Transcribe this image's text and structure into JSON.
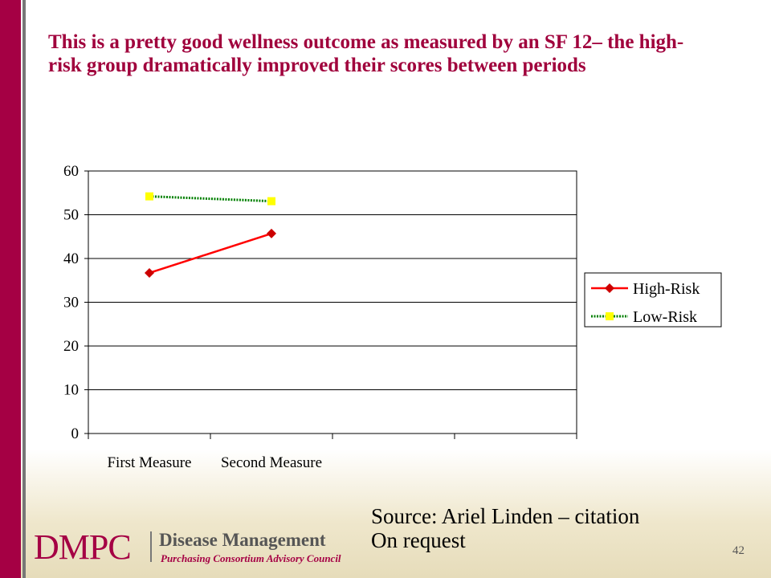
{
  "title": "This is a pretty good wellness outcome as measured by an SF 12– the high-risk group dramatically improved their scores between periods",
  "chart_data": {
    "type": "line",
    "categories": [
      "First Measure",
      "Second Measure",
      null,
      null
    ],
    "series": [
      {
        "name": "High-Risk",
        "color": "#ff0000",
        "marker": "diamond",
        "marker_color": "#cc0000",
        "values": [
          36.7,
          45.7,
          null,
          null
        ]
      },
      {
        "name": "Low-Risk",
        "color": "#008000",
        "marker": "square",
        "marker_color": "#ffff00",
        "dotted": true,
        "values": [
          54.2,
          53.1,
          null,
          null
        ]
      }
    ],
    "ylim": [
      0,
      60
    ],
    "yticks": [
      0,
      10,
      20,
      30,
      40,
      50,
      60
    ],
    "grid": true,
    "legend": "right"
  },
  "source": [
    "Source:  Ariel Linden – citation",
    "On request"
  ],
  "page_number": "42",
  "logo": {
    "acronym": "DMPC",
    "name": "Disease Management",
    "subtitle": "Purchasing Consortium Advisory Council"
  }
}
